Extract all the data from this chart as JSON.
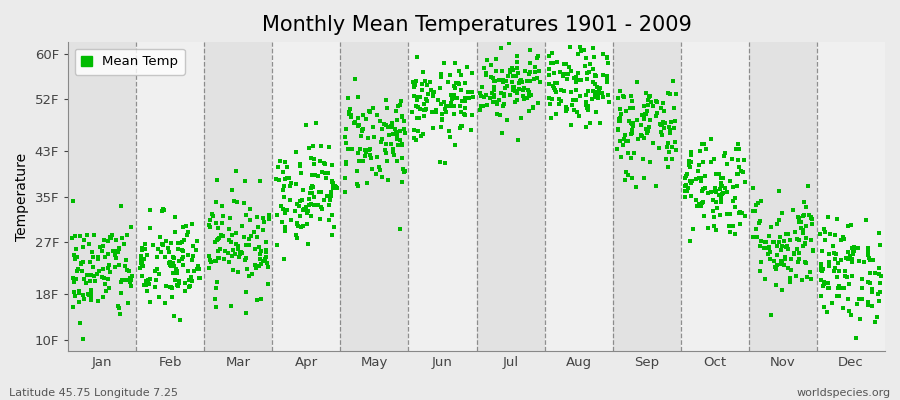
{
  "title": "Monthly Mean Temperatures 1901 - 2009",
  "ylabel": "Temperature",
  "xlabel_months": [
    "Jan",
    "Feb",
    "Mar",
    "Apr",
    "May",
    "Jun",
    "Jul",
    "Aug",
    "Sep",
    "Oct",
    "Nov",
    "Dec"
  ],
  "yticks_vals": [
    10,
    18,
    27,
    35,
    43,
    52,
    60
  ],
  "ytick_labels": [
    "10F",
    "18F",
    "27F",
    "35F",
    "43F",
    "52F",
    "60F"
  ],
  "ylim": [
    8,
    62
  ],
  "dot_color": "#00bb00",
  "background_color": "#ebebeb",
  "band_colors": [
    "#e2e2e2",
    "#f0f0f0"
  ],
  "legend_label": "Mean Temp",
  "subtitle_left": "Latitude 45.75 Longitude 7.25",
  "subtitle_right": "worldspecies.org",
  "title_fontsize": 15,
  "axis_fontsize": 10,
  "tick_fontsize": 9.5,
  "dot_size": 6,
  "monthly_mean_temps_F": [
    22,
    23,
    27,
    36,
    45,
    51,
    55,
    54,
    47,
    37,
    27,
    22
  ],
  "monthly_std_F": [
    4.5,
    4.5,
    4.5,
    4.5,
    4.5,
    3.5,
    3.5,
    3.5,
    4.5,
    4.5,
    4.5,
    4.5
  ],
  "n_years": 109
}
